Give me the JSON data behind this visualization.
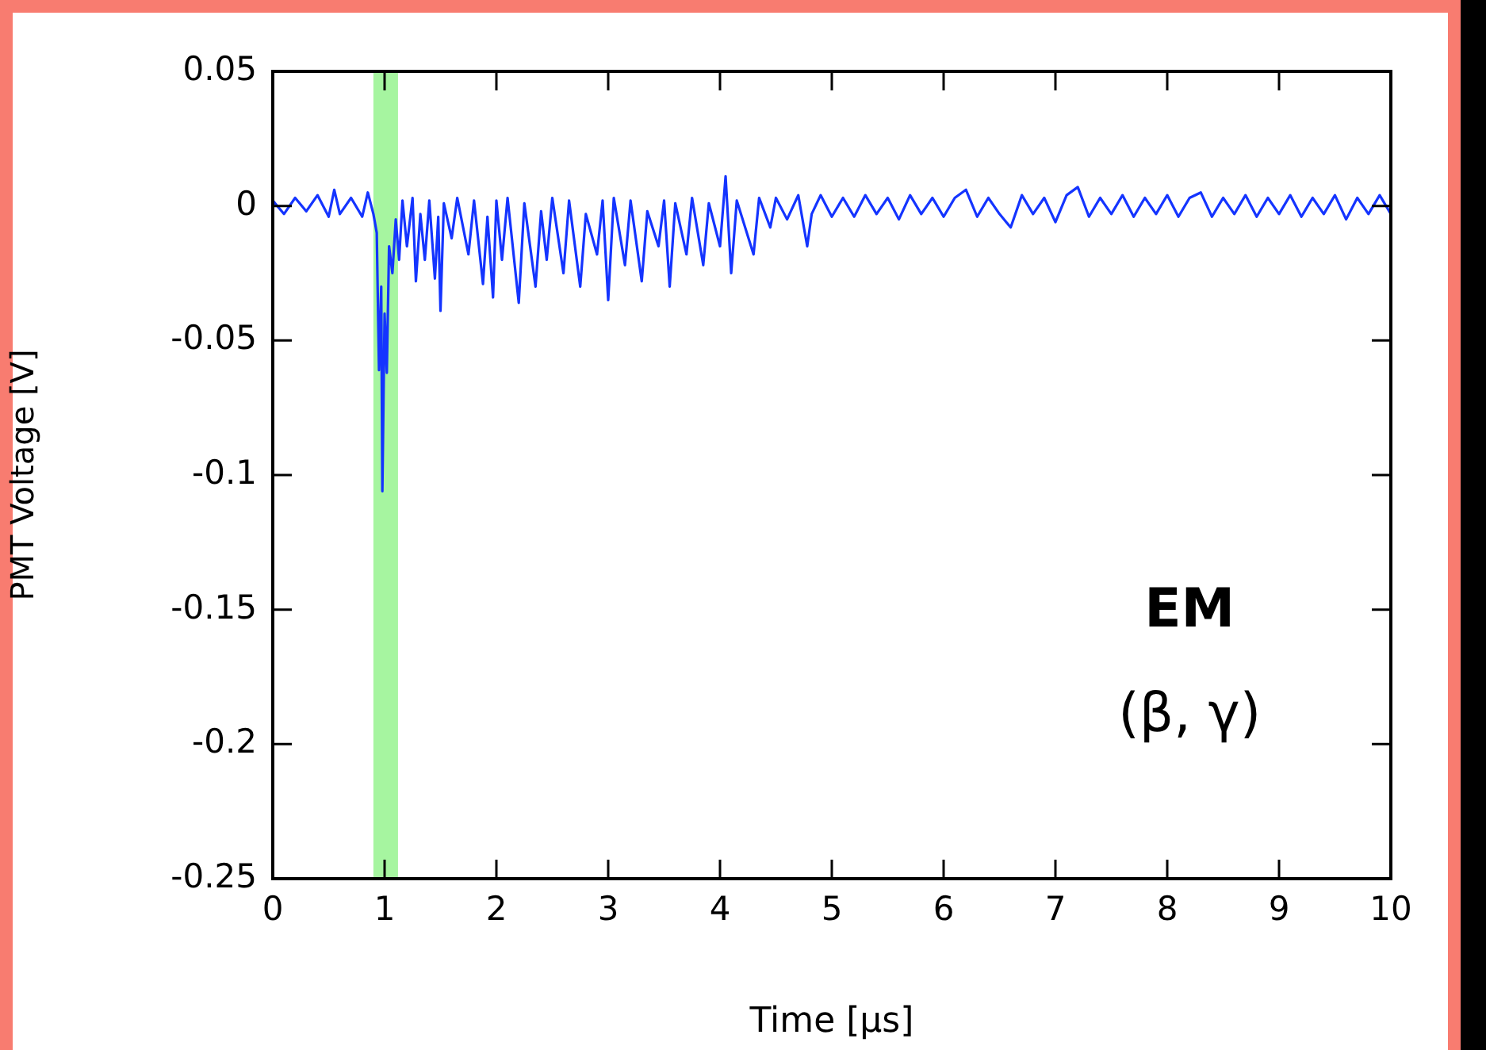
{
  "chart_data": {
    "type": "line",
    "xlabel": "Time [μs]",
    "ylabel": "PMT Voltage [V]",
    "annotations": [
      "EM",
      "(β, γ)"
    ],
    "xlim": [
      0,
      10
    ],
    "xticks": [
      0,
      1,
      2,
      3,
      4,
      5,
      6,
      7,
      8,
      9,
      10
    ],
    "ylim": [
      -0.25,
      0.05
    ],
    "yticks": [
      -0.25,
      -0.2,
      -0.15,
      -0.1,
      -0.05,
      0,
      0.05
    ],
    "grid": false,
    "legend": false,
    "marker": "none",
    "line_style": "solid",
    "bands": [
      {
        "axis": "x",
        "from": 0.9,
        "to": 1.12,
        "color": "#a6f5a0"
      }
    ],
    "series": [
      {
        "color": "#1434ff",
        "x": [
          0,
          0.1,
          0.2,
          0.3,
          0.4,
          0.5,
          0.55,
          0.6,
          0.7,
          0.8,
          0.85,
          0.9,
          0.93,
          0.95,
          0.97,
          0.98,
          1.0,
          1.02,
          1.04,
          1.07,
          1.1,
          1.13,
          1.16,
          1.2,
          1.25,
          1.28,
          1.32,
          1.36,
          1.4,
          1.45,
          1.48,
          1.5,
          1.53,
          1.6,
          1.65,
          1.75,
          1.8,
          1.88,
          1.92,
          1.97,
          2.0,
          2.05,
          2.1,
          2.2,
          2.25,
          2.35,
          2.4,
          2.45,
          2.5,
          2.6,
          2.65,
          2.75,
          2.8,
          2.9,
          2.95,
          3.0,
          3.05,
          3.15,
          3.2,
          3.3,
          3.35,
          3.45,
          3.5,
          3.55,
          3.6,
          3.7,
          3.75,
          3.85,
          3.9,
          4.0,
          4.05,
          4.1,
          4.15,
          4.3,
          4.35,
          4.45,
          4.5,
          4.6,
          4.7,
          4.78,
          4.82,
          4.9,
          5.0,
          5.1,
          5.2,
          5.3,
          5.4,
          5.5,
          5.6,
          5.7,
          5.8,
          5.9,
          6.0,
          6.1,
          6.2,
          6.3,
          6.4,
          6.5,
          6.6,
          6.7,
          6.8,
          6.9,
          7.0,
          7.1,
          7.2,
          7.3,
          7.4,
          7.5,
          7.6,
          7.7,
          7.8,
          7.9,
          8.0,
          8.1,
          8.2,
          8.3,
          8.4,
          8.5,
          8.6,
          8.7,
          8.8,
          8.9,
          9.0,
          9.1,
          9.2,
          9.3,
          9.4,
          9.5,
          9.6,
          9.7,
          9.8,
          9.9,
          10
        ],
        "values": [
          0.002,
          -0.003,
          0.003,
          -0.002,
          0.004,
          -0.004,
          0.006,
          -0.003,
          0.003,
          -0.004,
          0.005,
          -0.003,
          -0.01,
          -0.061,
          -0.03,
          -0.106,
          -0.04,
          -0.062,
          -0.015,
          -0.025,
          -0.005,
          -0.02,
          0.002,
          -0.015,
          0.003,
          -0.028,
          -0.003,
          -0.02,
          0.002,
          -0.027,
          -0.004,
          -0.039,
          0.001,
          -0.012,
          0.003,
          -0.018,
          0.002,
          -0.029,
          -0.004,
          -0.034,
          0.002,
          -0.02,
          0.003,
          -0.036,
          0.001,
          -0.03,
          -0.002,
          -0.02,
          0.003,
          -0.025,
          0.002,
          -0.03,
          -0.003,
          -0.018,
          0.002,
          -0.035,
          0.003,
          -0.022,
          0.002,
          -0.028,
          -0.002,
          -0.015,
          0.002,
          -0.03,
          0.001,
          -0.018,
          0.003,
          -0.022,
          0.001,
          -0.015,
          0.011,
          -0.025,
          0.002,
          -0.018,
          0.003,
          -0.008,
          0.003,
          -0.005,
          0.004,
          -0.015,
          -0.003,
          0.004,
          -0.004,
          0.003,
          -0.004,
          0.004,
          -0.003,
          0.003,
          -0.005,
          0.004,
          -0.003,
          0.003,
          -0.004,
          0.003,
          0.006,
          -0.004,
          0.003,
          -0.003,
          -0.008,
          0.004,
          -0.003,
          0.003,
          -0.006,
          0.004,
          0.007,
          -0.004,
          0.003,
          -0.003,
          0.004,
          -0.004,
          0.003,
          -0.003,
          0.004,
          -0.004,
          0.003,
          0.005,
          -0.004,
          0.003,
          -0.003,
          0.004,
          -0.004,
          0.003,
          -0.003,
          0.004,
          -0.004,
          0.003,
          -0.003,
          0.004,
          -0.005,
          0.003,
          -0.003,
          0.004,
          -0.003
        ]
      }
    ]
  }
}
